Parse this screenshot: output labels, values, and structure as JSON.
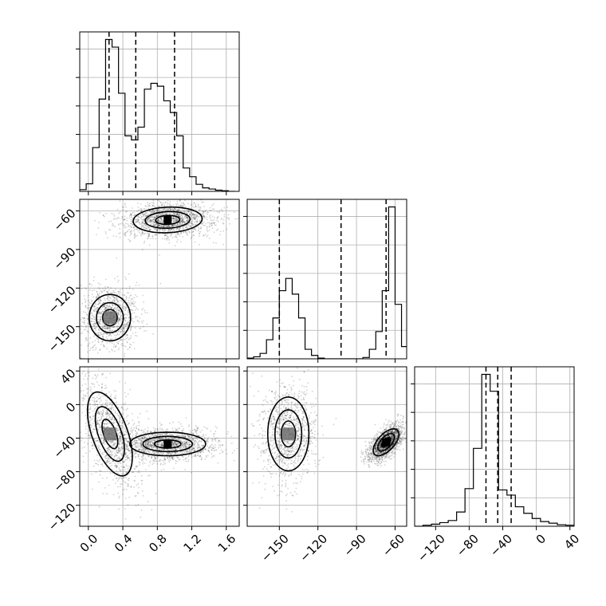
{
  "chart_data": {
    "type": "corner",
    "title": "",
    "parameters": [
      {
        "index": 0,
        "range": [
          -0.1,
          1.75
        ],
        "ticks": [
          0.0,
          0.4,
          0.8,
          1.2,
          1.6
        ],
        "tick_labels": [
          "0.0",
          "0.4",
          "0.8",
          "1.2",
          "1.6"
        ]
      },
      {
        "index": 1,
        "range": [
          -175,
          -51
        ],
        "ticks": [
          -150,
          -120,
          -90,
          -60
        ],
        "tick_labels": [
          "−150",
          "−120",
          "−90",
          "−60"
        ]
      },
      {
        "index": 2,
        "range": [
          -145,
          45
        ],
        "ticks": [
          -120,
          -80,
          -40,
          0,
          40
        ],
        "tick_labels": [
          "−120",
          "−80",
          "−40",
          "0",
          "40"
        ]
      }
    ],
    "grid": true,
    "histograms": [
      {
        "param": 0,
        "bin_edges": [
          -0.1,
          -0.025,
          0.05,
          0.125,
          0.2,
          0.275,
          0.35,
          0.425,
          0.5,
          0.575,
          0.65,
          0.725,
          0.8,
          0.875,
          0.95,
          1.025,
          1.1,
          1.175,
          1.25,
          1.325,
          1.4,
          1.475,
          1.55,
          1.625,
          1.7
        ],
        "counts": [
          3,
          13,
          75,
          158,
          260,
          247,
          168,
          95,
          88,
          110,
          175,
          185,
          180,
          155,
          135,
          95,
          40,
          25,
          12,
          6,
          4,
          2,
          1,
          0
        ],
        "quantile_lines": [
          0.24,
          0.55,
          1.0
        ]
      },
      {
        "param": 1,
        "bin_edges": [
          -175,
          -170,
          -165,
          -160,
          -155,
          -150,
          -145,
          -140,
          -135,
          -130,
          -125,
          -120,
          -115,
          -110,
          -105,
          -100,
          -95,
          -90,
          -85,
          -80,
          -75,
          -70,
          -65,
          -60,
          -55,
          -50
        ],
        "counts": [
          1,
          3,
          8,
          28,
          60,
          100,
          118,
          95,
          60,
          14,
          5,
          1,
          0,
          0,
          0,
          0,
          0,
          0,
          2,
          14,
          40,
          100,
          223,
          80,
          18
        ],
        "quantile_lines": [
          -150,
          -102,
          -67
        ]
      },
      {
        "param": 2,
        "bin_edges": [
          -145,
          -135,
          -125,
          -115,
          -105,
          -95,
          -85,
          -75,
          -65,
          -55,
          -45,
          -35,
          -25,
          -15,
          -5,
          5,
          15,
          25,
          35,
          45
        ],
        "counts": [
          0,
          4,
          8,
          14,
          22,
          55,
          145,
          300,
          585,
          520,
          140,
          120,
          75,
          50,
          30,
          18,
          12,
          6,
          4
        ],
        "quantile_lines": [
          -60,
          -46,
          -30
        ]
      }
    ],
    "pairs": [
      {
        "x_param": 0,
        "y_param": 1,
        "modes": [
          {
            "x": 0.92,
            "y": -67,
            "sx": 0.2,
            "sy": 5,
            "rho": 0.1,
            "weight": 0.6
          },
          {
            "x": 0.25,
            "y": -143,
            "sx": 0.12,
            "sy": 9,
            "rho": 0.0,
            "weight": 0.4
          }
        ]
      },
      {
        "x_param": 0,
        "y_param": 2,
        "modes": [
          {
            "x": 0.92,
            "y": -47,
            "sx": 0.22,
            "sy": 7,
            "rho": 0.0,
            "weight": 0.6
          },
          {
            "x": 0.25,
            "y": -35,
            "sx": 0.13,
            "sy": 25,
            "rho": -0.55,
            "weight": 0.4
          }
        ]
      },
      {
        "x_param": 1,
        "y_param": 2,
        "modes": [
          {
            "x": -67,
            "y": -45,
            "sx": 5,
            "sy": 8,
            "rho": 0.6,
            "weight": 0.6
          },
          {
            "x": -143,
            "y": -35,
            "sx": 8,
            "sy": 22,
            "rho": 0.0,
            "weight": 0.4
          }
        ]
      }
    ]
  }
}
